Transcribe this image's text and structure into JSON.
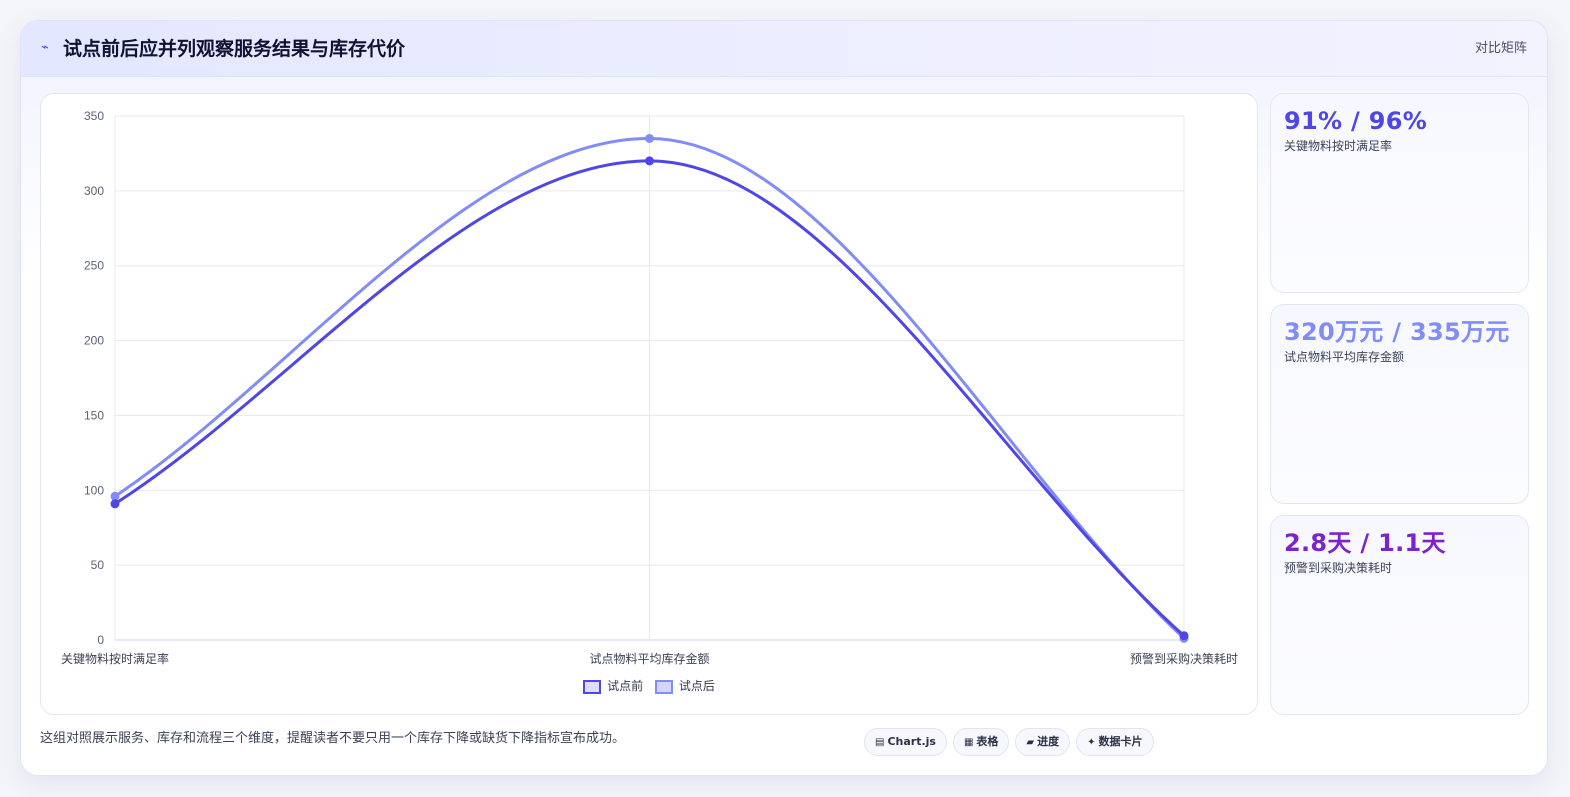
{
  "header": {
    "title": "试点前后应并列观察服务结果与库存代价",
    "icon": "zap-icon",
    "tag": "对比矩阵"
  },
  "colors": {
    "before": "#4f46e5",
    "after": "#818cf8",
    "stat1": "#4f46e5",
    "stat2": "#818cf8",
    "stat3": "#7e22ce"
  },
  "chart_data": {
    "type": "line",
    "smooth": true,
    "title": "",
    "xlabel": "",
    "ylabel": "",
    "categories": [
      "关键物料按时满足率",
      "试点物料平均库存金额",
      "预警到采购决策耗时"
    ],
    "series": [
      {
        "name": "试点前",
        "values": [
          91,
          320,
          2.8
        ]
      },
      {
        "name": "试点后",
        "values": [
          96,
          335,
          1.1
        ]
      }
    ],
    "ylim": [
      0,
      350
    ],
    "yticks": [
      0,
      50,
      100,
      150,
      200,
      250,
      300,
      350
    ],
    "grid": true,
    "legend": "bottom"
  },
  "stats": [
    {
      "value": "91% / 96%",
      "label": "关键物料按时满足率"
    },
    {
      "value": "320万元 / 335万元",
      "label": "试点物料平均库存金额"
    },
    {
      "value": "2.8天 / 1.1天",
      "label": "预警到采购决策耗时"
    }
  ],
  "footer": {
    "note": "这组对照展示服务、库存和流程三个维度，提醒读者不要只用一个库存下降或缺货下降指标宣布成功。",
    "chips": [
      {
        "icon": "chart-icon",
        "glyph": "▤",
        "label": "Chart.js"
      },
      {
        "icon": "table-icon",
        "glyph": "▦",
        "label": "表格"
      },
      {
        "icon": "progress-icon",
        "glyph": "▰",
        "label": "进度"
      },
      {
        "icon": "sparkle-icon",
        "glyph": "✦",
        "label": "数据卡片"
      }
    ]
  }
}
